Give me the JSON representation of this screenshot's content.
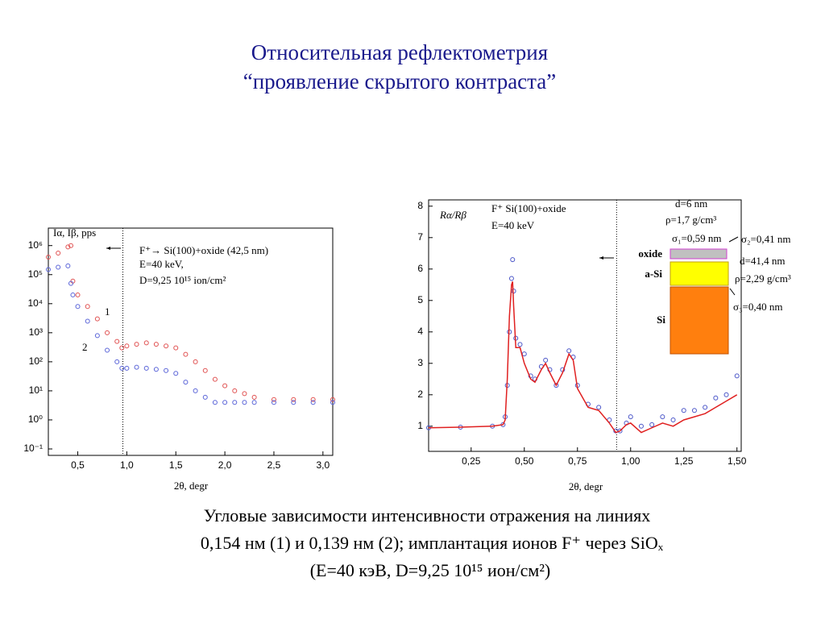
{
  "title": [
    "Относительная рефлектометрия",
    "“проявление скрытого контраста”"
  ],
  "caption": [
    "Угловые зависимости интенсивности отражения на линиях",
    "0,154 нм (1) и 0,139 нм (2); имплантация ионов F⁺ через SiOₓ",
    "(E=40 кэВ, D=9,25 10¹⁵ ион/см²)"
  ],
  "chart_data": [
    {
      "type": "scatter",
      "y_label": "Iα, Iβ, pps",
      "x_label": "2θ, degr",
      "log_y": true,
      "xlim": [
        0.2,
        3.1
      ],
      "ylim": [
        0.06,
        4000000
      ],
      "xticks": [
        {
          "value": 0.5,
          "label": "0,5"
        },
        {
          "value": 1.0,
          "label": "1,0"
        },
        {
          "value": 1.5,
          "label": "1,5"
        },
        {
          "value": 2.0,
          "label": "2,0"
        },
        {
          "value": 2.5,
          "label": "2,5"
        },
        {
          "value": 3.0,
          "label": "3,0"
        }
      ],
      "yticks": [
        {
          "value": 0.1,
          "label": "10⁻¹"
        },
        {
          "value": 1,
          "label": "10⁰"
        },
        {
          "value": 10,
          "label": "10¹"
        },
        {
          "value": 100,
          "label": "10²"
        },
        {
          "value": 1000,
          "label": "10³"
        },
        {
          "value": 10000,
          "label": "10⁴"
        },
        {
          "value": 100000,
          "label": "10⁵"
        },
        {
          "value": 1000000,
          "label": "10⁶"
        }
      ],
      "vline": 0.96,
      "annotations": [
        "F⁺→ Si(100)+oxide (42,5 nm)",
        "E=40 keV,",
        "D=9,25 10¹⁵ ion/cm²",
        "1",
        "2"
      ],
      "x": [
        0.2,
        0.3,
        0.4,
        0.43,
        0.45,
        0.5,
        0.6,
        0.7,
        0.8,
        0.9,
        0.95,
        1.0,
        1.1,
        1.2,
        1.3,
        1.4,
        1.5,
        1.6,
        1.7,
        1.8,
        1.9,
        2.0,
        2.1,
        2.2,
        2.3,
        2.5,
        2.7,
        2.9,
        3.1
      ],
      "series": [
        {
          "mode": "markers",
          "color": "#e05050",
          "values": [
            400000,
            550000,
            900000,
            1000000,
            60000,
            20000,
            8000,
            3000,
            1000,
            500,
            300,
            350,
            400,
            450,
            400,
            350,
            300,
            180,
            100,
            50,
            25,
            15,
            10,
            8,
            6,
            5,
            5,
            5,
            5
          ]
        },
        {
          "mode": "markers",
          "color": "#5a64d8",
          "values": [
            150000,
            180000,
            200000,
            50000,
            20000,
            8000,
            2500,
            800,
            250,
            100,
            60,
            60,
            65,
            60,
            55,
            50,
            40,
            20,
            10,
            6,
            4,
            4,
            4,
            4,
            4,
            4,
            4,
            4,
            4
          ]
        }
      ]
    },
    {
      "type": "line",
      "y_label": "Rα/Rβ",
      "x_label": "2θ, degr",
      "log_y": false,
      "xlim": [
        0.05,
        1.52
      ],
      "ylim": [
        0.2,
        8.2
      ],
      "xticks": [
        {
          "value": 0.25,
          "label": "0,25"
        },
        {
          "value": 0.5,
          "label": "0,50"
        },
        {
          "value": 0.75,
          "label": "0,75"
        },
        {
          "value": 1.0,
          "label": "1,00"
        },
        {
          "value": 1.25,
          "label": "1,25"
        },
        {
          "value": 1.5,
          "label": "1,50"
        }
      ],
      "yticks": [
        1,
        2,
        3,
        4,
        5,
        6,
        7,
        8
      ],
      "vline": 0.934,
      "annotations": [
        "F⁺ Si(100)+oxide",
        "E=40 keV",
        "d=6 nm",
        "ρ=1,7 g/cm³",
        "σ₁=0,59 nm",
        "σ₂=0,41 nm",
        "d=41,4 nm",
        "ρ=2,29 g/cm³",
        "σ₃=0,40 nm",
        "oxide",
        "a-Si",
        "Si"
      ],
      "x": [
        0.05,
        0.2,
        0.35,
        0.4,
        0.41,
        0.42,
        0.43,
        0.44,
        0.445,
        0.45,
        0.46,
        0.48,
        0.5,
        0.53,
        0.55,
        0.58,
        0.6,
        0.62,
        0.65,
        0.68,
        0.71,
        0.73,
        0.75,
        0.8,
        0.85,
        0.9,
        0.93,
        0.95,
        0.98,
        1.0,
        1.05,
        1.1,
        1.15,
        1.2,
        1.25,
        1.3,
        1.35,
        1.4,
        1.45,
        1.5
      ],
      "series": [
        {
          "mode": "markers",
          "color": "#4a55c8",
          "values": [
            0.95,
            0.97,
            1.0,
            1.05,
            1.3,
            2.3,
            4.0,
            5.7,
            6.3,
            5.3,
            3.8,
            3.6,
            3.3,
            2.6,
            2.5,
            2.9,
            3.1,
            2.8,
            2.3,
            2.8,
            3.4,
            3.2,
            2.3,
            1.7,
            1.6,
            1.2,
            0.85,
            0.85,
            1.1,
            1.3,
            1.0,
            1.05,
            1.3,
            1.2,
            1.5,
            1.5,
            1.6,
            1.9,
            2.0,
            2.6
          ]
        },
        {
          "mode": "line",
          "color": "#e02020",
          "values": [
            0.95,
            0.97,
            1.0,
            1.05,
            1.2,
            2.5,
            4.5,
            5.5,
            5.6,
            4.8,
            3.5,
            3.5,
            3.0,
            2.5,
            2.4,
            2.8,
            3.0,
            2.7,
            2.3,
            2.7,
            3.3,
            3.1,
            2.2,
            1.6,
            1.5,
            1.1,
            0.8,
            0.85,
            1.05,
            1.1,
            0.8,
            0.95,
            1.1,
            1.0,
            1.2,
            1.3,
            1.4,
            1.6,
            1.8,
            2.0
          ]
        }
      ]
    }
  ]
}
